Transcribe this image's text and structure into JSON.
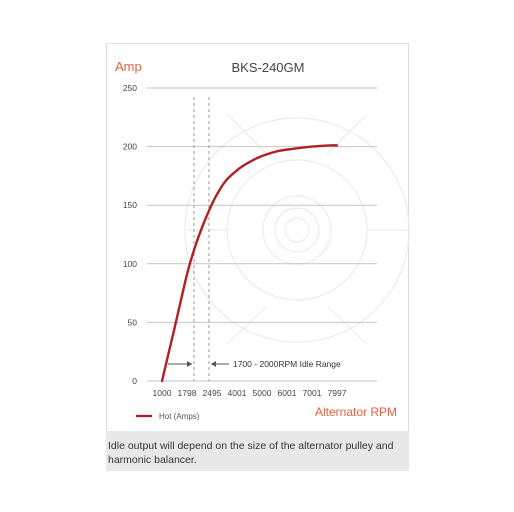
{
  "colors": {
    "accent": "#e8603c",
    "curve": "#b32024",
    "grid": "#c4c4c4",
    "text": "#333333"
  },
  "caption": "Idle output will depend on the size of the alternator pulley and harmonic balancer.",
  "chart_data": {
    "type": "line",
    "title": "BKS-240GM",
    "ylabel": "Amp",
    "xlabel": "Alternator RPM",
    "y_ticks": [
      "0",
      "50",
      "100",
      "150",
      "200",
      "250"
    ],
    "x_ticks": [
      "1000",
      "1798",
      "2495",
      "4001",
      "5000",
      "6001",
      "7001",
      "7997"
    ],
    "ylim": [
      0,
      250
    ],
    "series": [
      {
        "name": "Hot (Amps)",
        "x_tick_index": [
          0,
          0.2,
          0.5,
          1.0,
          1.3,
          1.6,
          2.0,
          2.3,
          2.6,
          2.9,
          3.2,
          3.6,
          4.0,
          4.6,
          5.2,
          6.0,
          6.7,
          7.0
        ],
        "values": [
          0,
          18,
          45,
          91,
          113,
          131,
          151,
          163,
          172,
          178,
          183,
          188,
          192,
          196,
          198,
          200,
          201,
          201
        ]
      }
    ],
    "annotation": {
      "label": "1700 - 2000RPM Idle Range",
      "x_tick_index_range": [
        1.0,
        1.6
      ]
    },
    "grid": true,
    "legend": "bottom-left"
  }
}
